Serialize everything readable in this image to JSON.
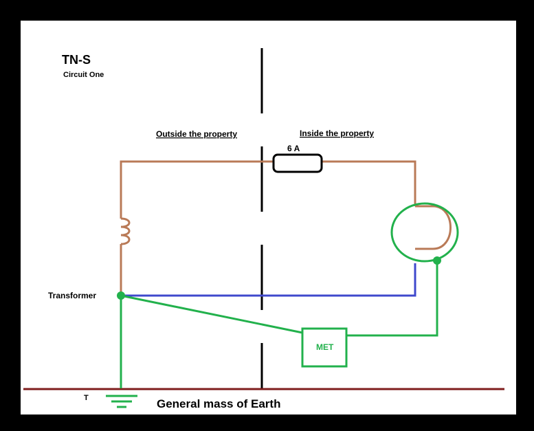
{
  "title": "TN-S",
  "subtitle": "Circuit One",
  "outside_label": "Outside the property",
  "inside_label": "Inside the property",
  "fuse_label": "6 A",
  "transformer_label": "Transformer",
  "met_label": "MET",
  "earth_label": "General mass of Earth",
  "t_label": "T",
  "colors": {
    "background_frame": "#000000",
    "canvas": "#ffffff",
    "line_conductor": "#b97a57",
    "neutral_conductor": "#3f48cc",
    "protective_earth": "#22b14c",
    "earth_line": "#7f1d1d",
    "boundary": "#000000"
  }
}
